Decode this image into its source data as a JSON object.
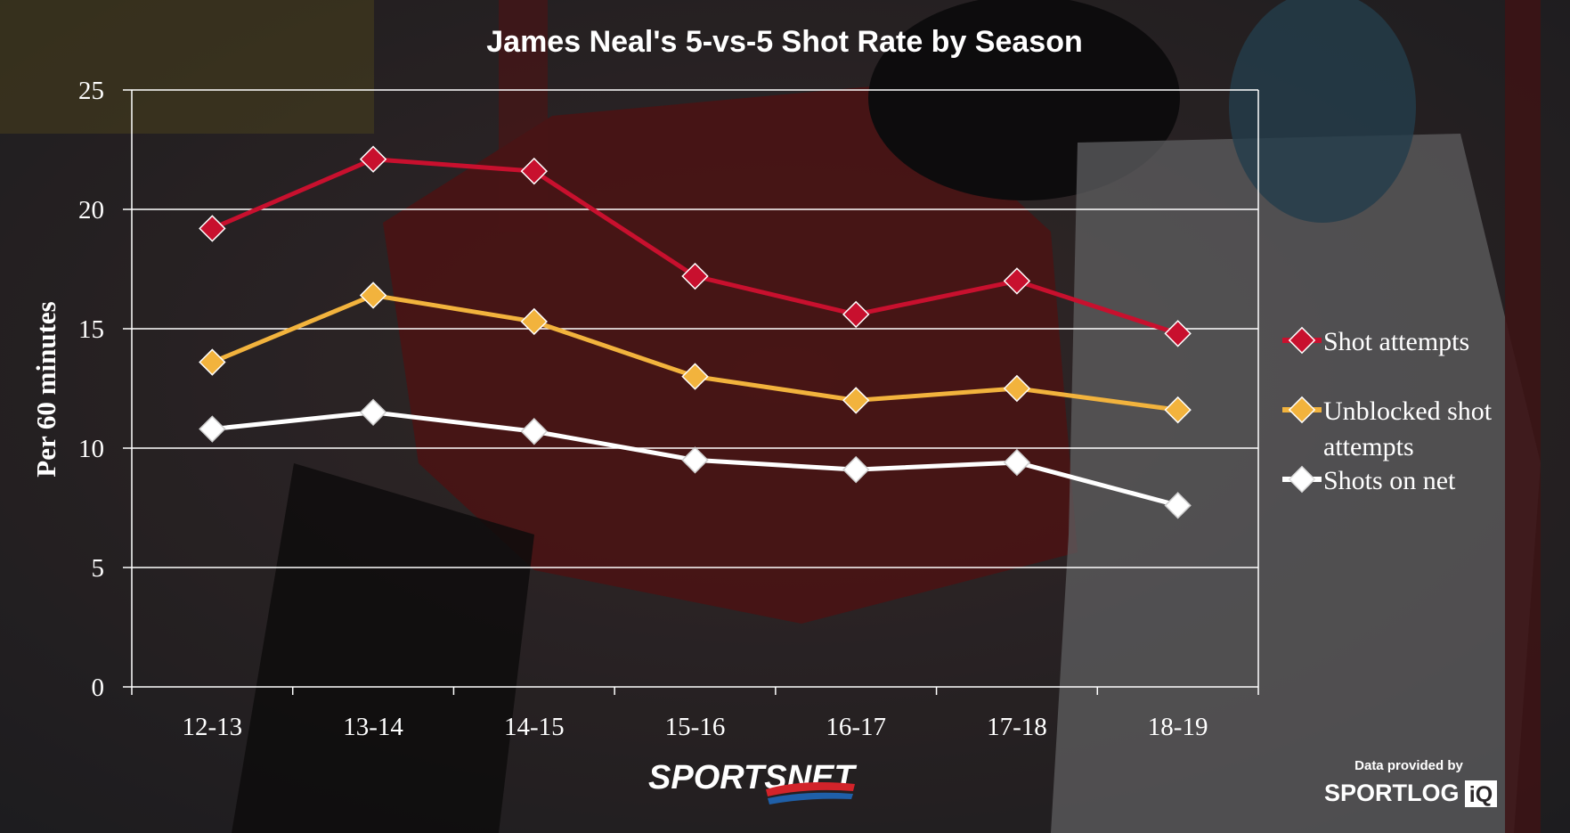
{
  "chart_data": {
    "type": "line",
    "title": "James Neal's 5-vs-5 Shot Rate by Season",
    "xlabel": "",
    "ylabel": "Per 60 minutes",
    "categories": [
      "12-13",
      "13-14",
      "14-15",
      "15-16",
      "16-17",
      "17-18",
      "18-19"
    ],
    "ylim": [
      0,
      25
    ],
    "yticks": [
      0,
      5,
      10,
      15,
      20,
      25
    ],
    "grid": "horizontal",
    "legend_position": "right",
    "series": [
      {
        "name": "Shot attempts",
        "color": "#c8102e",
        "values": [
          19.2,
          22.1,
          21.6,
          17.2,
          15.6,
          17.0,
          14.8
        ]
      },
      {
        "name": "Unblocked shot attempts",
        "color": "#f2b33d",
        "values": [
          13.6,
          16.4,
          15.3,
          13.0,
          12.0,
          12.5,
          11.6
        ]
      },
      {
        "name": "Shots on net",
        "color": "#ffffff",
        "values": [
          10.8,
          11.5,
          10.7,
          9.5,
          9.1,
          9.4,
          7.6
        ]
      }
    ]
  },
  "legend_labels": {
    "shot_attempts": "Shot attempts",
    "unblocked_line1": "Unblocked shot",
    "unblocked_line2": "attempts",
    "shots_on_net": "Shots on net"
  },
  "credits": {
    "sportsnet": "SPORTSNET",
    "data_provided_by": "Data provided by",
    "sportlogiq_main": "SPORTLOG",
    "sportlogiq_end": "iQ"
  }
}
